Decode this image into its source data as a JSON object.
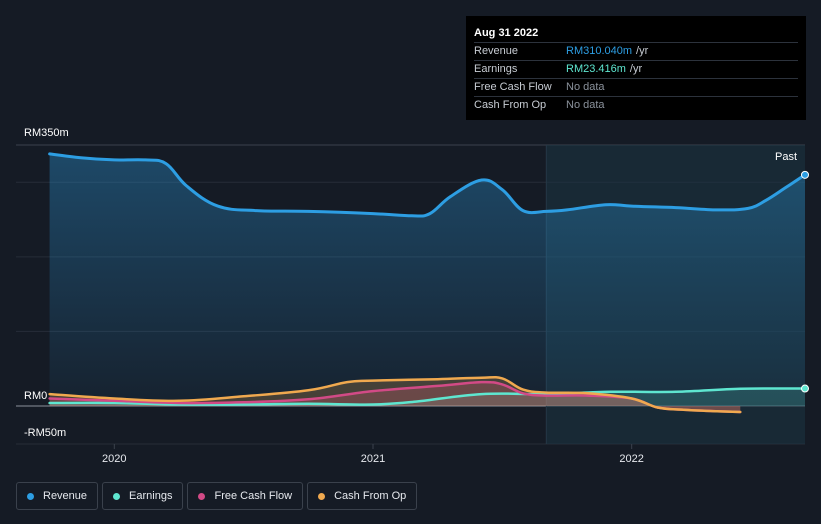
{
  "tooltip": {
    "date": "Aug 31 2022",
    "rows": [
      {
        "label": "Revenue",
        "value": "RM310.040m",
        "unit": "/yr",
        "color": "#2d9ee3"
      },
      {
        "label": "Earnings",
        "value": "RM23.416m",
        "unit": "/yr",
        "color": "#5ee6d0"
      },
      {
        "label": "Free Cash Flow",
        "value": "No data",
        "unit": "",
        "color": "#8b929c"
      },
      {
        "label": "Cash From Op",
        "value": "No data",
        "unit": "",
        "color": "#8b929c"
      }
    ]
  },
  "legend": [
    {
      "label": "Revenue",
      "color": "#2d9ee3"
    },
    {
      "label": "Earnings",
      "color": "#5ee6d0"
    },
    {
      "label": "Free Cash Flow",
      "color": "#d24a86"
    },
    {
      "label": "Cash From Op",
      "color": "#f0a94f"
    }
  ],
  "chart_data": {
    "type": "line",
    "ylabel_top": "RM350m",
    "ylabel_zero": "RM0",
    "ylabel_bottom": "-RM50m",
    "ylim": [
      -50,
      350
    ],
    "x_range": [
      2019.62,
      2022.67
    ],
    "x_ticks": [
      {
        "x": 2020.0,
        "label": "2020"
      },
      {
        "x": 2021.0,
        "label": "2021"
      },
      {
        "x": 2022.0,
        "label": "2022"
      }
    ],
    "past_label": "Past",
    "past_start": 2021.67,
    "series": [
      {
        "name": "Revenue",
        "color": "#2d9ee3",
        "x": [
          2019.75,
          2019.87,
          2020.0,
          2020.12,
          2020.2,
          2020.28,
          2020.4,
          2020.55,
          2020.75,
          2021.0,
          2021.15,
          2021.22,
          2021.3,
          2021.42,
          2021.5,
          2021.58,
          2021.67,
          2021.75,
          2021.9,
          2022.0,
          2022.17,
          2022.33,
          2022.45,
          2022.52,
          2022.6,
          2022.67
        ],
        "values": [
          338,
          333,
          330,
          330,
          325,
          295,
          268,
          262,
          261,
          258,
          255,
          258,
          281,
          303,
          290,
          262,
          261,
          263,
          270,
          268,
          266,
          263,
          265,
          276,
          294,
          310
        ]
      },
      {
        "name": "Earnings",
        "color": "#5ee6d0",
        "x": [
          2019.75,
          2020.0,
          2020.25,
          2020.5,
          2020.75,
          2021.0,
          2021.17,
          2021.42,
          2021.67,
          2021.92,
          2022.17,
          2022.42,
          2022.67
        ],
        "values": [
          4,
          4,
          2,
          2,
          3,
          2,
          6,
          16,
          16,
          19,
          19,
          23,
          23.416
        ]
      },
      {
        "name": "Free Cash Flow",
        "color": "#d24a86",
        "x": [
          2019.75,
          2020.0,
          2020.25,
          2020.5,
          2020.75,
          2021.0,
          2021.25,
          2021.42,
          2021.5,
          2021.58,
          2021.67,
          2021.83,
          2022.0,
          2022.1,
          2022.2,
          2022.33,
          2022.42
        ],
        "values": [
          10,
          7,
          4,
          5,
          9,
          20,
          27,
          32,
          29,
          17,
          14,
          14,
          10,
          -2,
          -5,
          -7,
          -8
        ]
      },
      {
        "name": "Cash From Op",
        "color": "#f0a94f",
        "x": [
          2019.75,
          2020.0,
          2020.25,
          2020.5,
          2020.75,
          2020.9,
          2021.0,
          2021.25,
          2021.42,
          2021.5,
          2021.58,
          2021.67,
          2021.83,
          2022.0,
          2022.1,
          2022.2,
          2022.33,
          2022.42
        ],
        "values": [
          16,
          10,
          7,
          13,
          21,
          32,
          34,
          36,
          38,
          37,
          22,
          18,
          17,
          10,
          -2,
          -5,
          -7,
          -8
        ]
      }
    ],
    "end_markers": [
      "Revenue",
      "Earnings"
    ]
  }
}
